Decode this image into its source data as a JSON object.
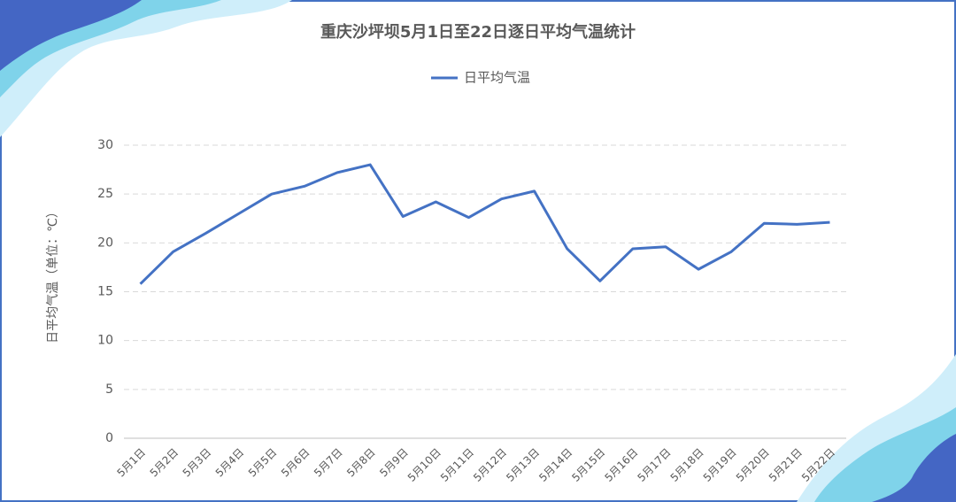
{
  "chart_data": {
    "type": "line",
    "title": "重庆沙坪坝5月1日至22日逐日平均气温统计",
    "y_label": "日平均气温（单位：℃）",
    "categories": [
      "5月1日",
      "5月2日",
      "5月3日",
      "5月4日",
      "5月5日",
      "5月6日",
      "5月7日",
      "5月8日",
      "5月9日",
      "5月10日",
      "5月11日",
      "5月12日",
      "5月13日",
      "5月14日",
      "5月15日",
      "5月16日",
      "5月17日",
      "5月18日",
      "5月19日",
      "5月20日",
      "5月21日",
      "5月22日"
    ],
    "series": [
      {
        "name": "日平均气温",
        "color": "#4472c4",
        "values": [
          15.8,
          19.1,
          21.0,
          23.0,
          25.0,
          25.8,
          27.2,
          28.0,
          22.7,
          24.2,
          22.6,
          24.5,
          25.3,
          19.4,
          16.1,
          19.4,
          19.6,
          17.3,
          19.1,
          22.0,
          21.9,
          22.1
        ]
      }
    ],
    "ylim": [
      0,
      30
    ],
    "yticks": [
      0,
      5,
      10,
      15,
      20,
      25,
      30
    ],
    "grid": true,
    "legend": "top"
  }
}
